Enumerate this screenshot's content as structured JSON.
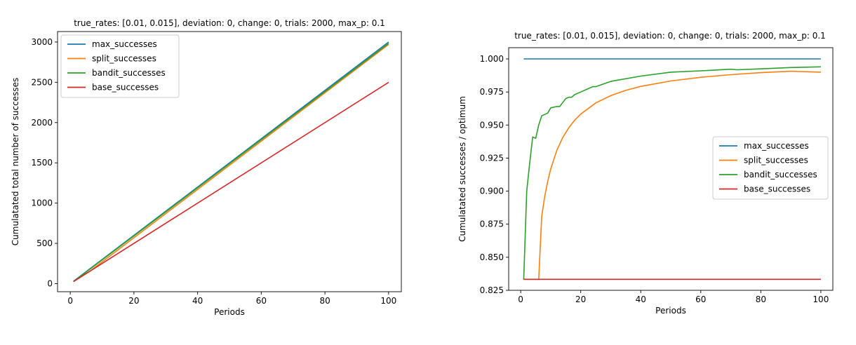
{
  "chart_data": [
    {
      "type": "line",
      "title": "true_rates: [0.01, 0.015], deviation: 0, change: 0, trials: 2000, max_p: 0.1",
      "xlabel": "Periods",
      "ylabel": "Cumulatated total number of successes",
      "xlim": [
        -4,
        104
      ],
      "ylim": [
        -100,
        3130
      ],
      "xticks": [
        0,
        20,
        40,
        60,
        80,
        100
      ],
      "yticks": [
        0,
        500,
        1000,
        1500,
        2000,
        2500,
        3000
      ],
      "tick_labels_x": [
        "0",
        "20",
        "40",
        "60",
        "80",
        "100"
      ],
      "tick_labels_y": [
        "0",
        "500",
        "1000",
        "1500",
        "2000",
        "2500",
        "3000"
      ],
      "grid": false,
      "legend_position": "upper left",
      "series": [
        {
          "name": "max_successes",
          "color": "#1f77b4",
          "x": [
            1,
            100
          ],
          "y": [
            30,
            3000
          ]
        },
        {
          "name": "split_successes",
          "color": "#ff7f0e",
          "x": [
            1,
            6,
            100
          ],
          "y": [
            25,
            150,
            2970
          ]
        },
        {
          "name": "bandit_successes",
          "color": "#2ca02c",
          "x": [
            1,
            100
          ],
          "y": [
            25,
            2983
          ]
        },
        {
          "name": "base_successes",
          "color": "#d62728",
          "x": [
            1,
            100
          ],
          "y": [
            25,
            2500
          ]
        }
      ]
    },
    {
      "type": "line",
      "title": "true_rates: [0.01, 0.015], deviation: 0, change: 0, trials: 2000, max_p: 0.1",
      "xlabel": "Periods",
      "ylabel": "Cumulatated successes / optimum",
      "xlim": [
        -4,
        104
      ],
      "ylim": [
        0.825,
        1.0085
      ],
      "xticks": [
        0,
        20,
        40,
        60,
        80,
        100
      ],
      "yticks": [
        0.825,
        0.85,
        0.875,
        0.9,
        0.925,
        0.95,
        0.975,
        1.0
      ],
      "tick_labels_x": [
        "0",
        "20",
        "40",
        "60",
        "80",
        "100"
      ],
      "tick_labels_y": [
        "0.825",
        "0.850",
        "0.875",
        "0.900",
        "0.925",
        "0.950",
        "0.975",
        "1.000"
      ],
      "grid": false,
      "legend_position": "center right",
      "series": [
        {
          "name": "max_successes",
          "color": "#1f77b4",
          "x": [
            1,
            100
          ],
          "y": [
            1.0,
            1.0
          ]
        },
        {
          "name": "split_successes",
          "color": "#ff7f0e",
          "x": [
            1,
            2,
            3,
            4,
            5,
            6,
            7,
            8,
            9,
            10,
            12,
            14,
            16,
            18,
            20,
            25,
            30,
            35,
            40,
            50,
            60,
            70,
            80,
            90,
            100
          ],
          "y": [
            0.8333,
            0.8333,
            0.8333,
            0.8333,
            0.8333,
            0.8333,
            0.881,
            0.8958,
            0.9074,
            0.9167,
            0.9306,
            0.9405,
            0.9479,
            0.9537,
            0.9583,
            0.9667,
            0.9722,
            0.9762,
            0.9792,
            0.9833,
            0.9861,
            0.9881,
            0.9896,
            0.9907,
            0.99
          ]
        },
        {
          "name": "bandit_successes",
          "color": "#2ca02c",
          "x": [
            1,
            2,
            3,
            4,
            5,
            6,
            7,
            8,
            9,
            10,
            12,
            13,
            14,
            15,
            16,
            17,
            18,
            20,
            22,
            24,
            25,
            30,
            40,
            50,
            60,
            70,
            72,
            80,
            90,
            100
          ],
          "y": [
            0.833,
            0.9,
            0.921,
            0.941,
            0.94,
            0.95,
            0.957,
            0.958,
            0.959,
            0.963,
            0.964,
            0.964,
            0.967,
            0.97,
            0.971,
            0.971,
            0.973,
            0.975,
            0.977,
            0.979,
            0.979,
            0.983,
            0.987,
            0.99,
            0.991,
            0.9922,
            0.9918,
            0.9925,
            0.9935,
            0.994
          ]
        },
        {
          "name": "base_successes",
          "color": "#d62728",
          "x": [
            1,
            100
          ],
          "y": [
            0.8333,
            0.8333
          ]
        }
      ]
    }
  ]
}
